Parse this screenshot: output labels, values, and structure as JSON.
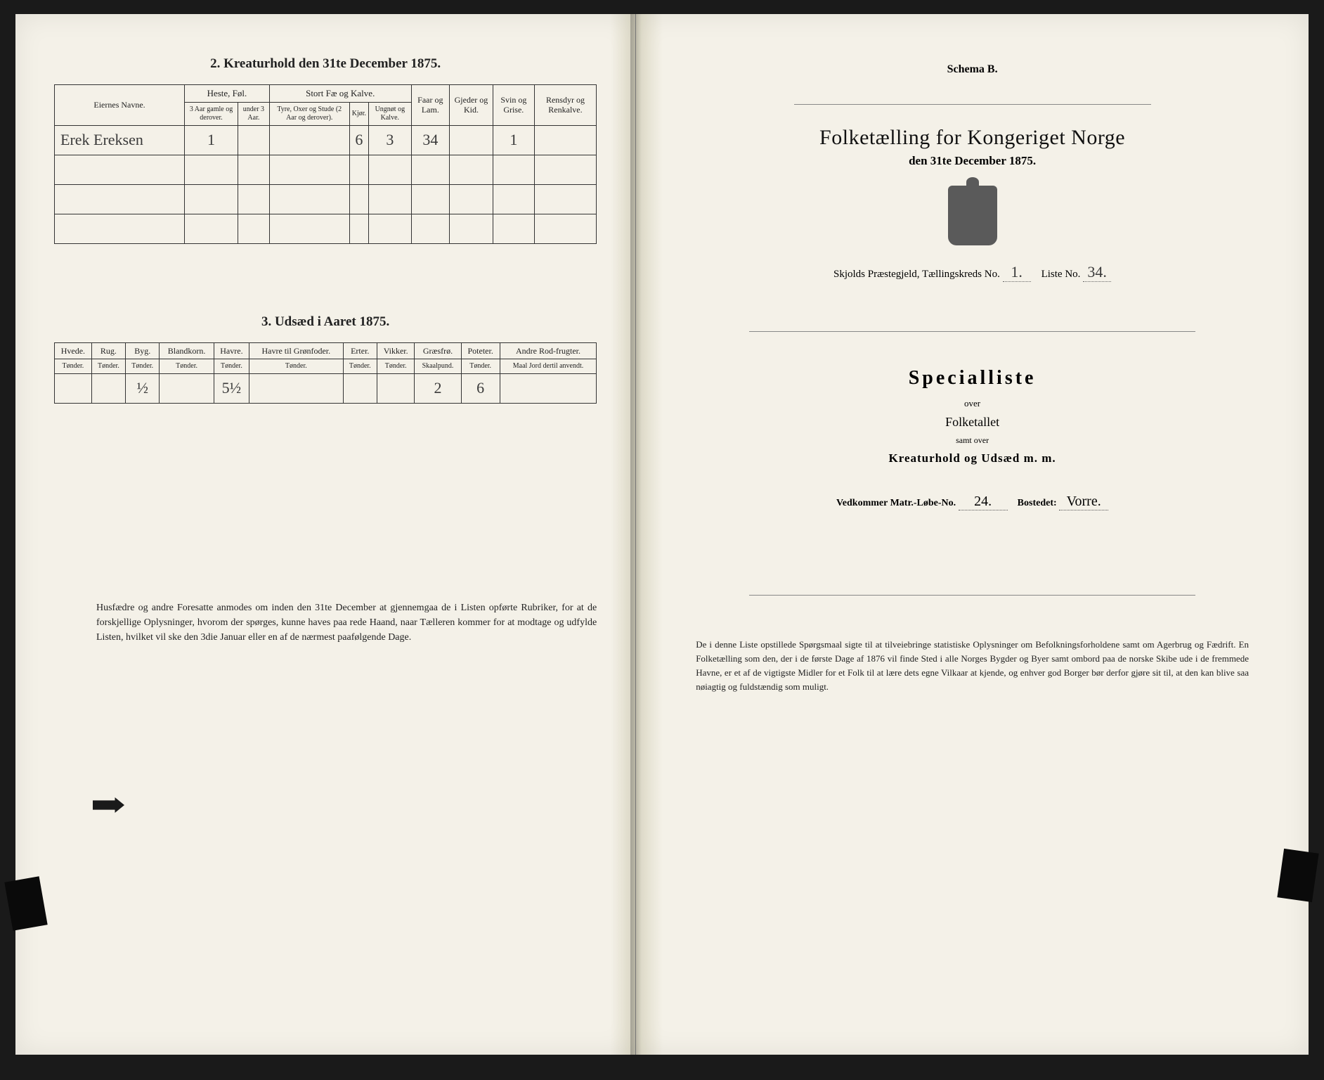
{
  "left": {
    "section2_title": "2. Kreaturhold den 31te December 1875.",
    "table2": {
      "headers": {
        "owner": "Eiernes Navne.",
        "horses": "Heste, Føl.",
        "horses_sub1": "3 Aar gamle og derover.",
        "horses_sub2": "under 3 Aar.",
        "cattle": "Stort Fæ og Kalve.",
        "cattle_sub1": "Tyre, Oxer og Stude (2 Aar og derover).",
        "cattle_sub2": "Kjør.",
        "cattle_sub3": "Ungnøt og Kalve.",
        "sheep": "Faar og Lam.",
        "goats": "Gjeder og Kid.",
        "pigs": "Svin og Grise.",
        "reindeer": "Rensdyr og Renkalve."
      },
      "rows": [
        {
          "owner": "Erek Ereksen",
          "h1": "1",
          "h2": "",
          "c1": "",
          "c2": "6",
          "c3": "3",
          "sheep": "34",
          "goats": "",
          "pigs": "1",
          "reindeer": ""
        },
        {
          "owner": "",
          "h1": "",
          "h2": "",
          "c1": "",
          "c2": "",
          "c3": "",
          "sheep": "",
          "goats": "",
          "pigs": "",
          "reindeer": ""
        },
        {
          "owner": "",
          "h1": "",
          "h2": "",
          "c1": "",
          "c2": "",
          "c3": "",
          "sheep": "",
          "goats": "",
          "pigs": "",
          "reindeer": ""
        },
        {
          "owner": "",
          "h1": "",
          "h2": "",
          "c1": "",
          "c2": "",
          "c3": "",
          "sheep": "",
          "goats": "",
          "pigs": "",
          "reindeer": ""
        }
      ]
    },
    "section3_title": "3. Udsæd i Aaret 1875.",
    "table3": {
      "headers": {
        "wheat": "Hvede.",
        "rye": "Rug.",
        "barley": "Byg.",
        "mixed": "Blandkorn.",
        "oats": "Havre.",
        "oats_green": "Havre til Grønfoder.",
        "peas": "Erter.",
        "vetches": "Vikker.",
        "grass": "Græsfrø.",
        "potatoes": "Poteter.",
        "other": "Andre Rod-frugter."
      },
      "units": {
        "tonder": "Tønder.",
        "skaalpund": "Skaalpund.",
        "maal": "Maal Jord dertil anvendt."
      },
      "row": {
        "wheat": "",
        "rye": "",
        "barley": "½",
        "mixed": "",
        "oats": "5½",
        "oats_green": "",
        "peas": "",
        "vetches": "",
        "grass": "2",
        "potatoes": "6",
        "other": ""
      }
    },
    "notice": "Husfædre og andre Foresatte anmodes om inden den 31te December at gjennemgaa de i Listen opførte Rubriker, for at de forskjellige Oplysninger, hvorom der spørges, kunne haves paa rede Haand, naar Tælleren kommer for at modtage og udfylde Listen, hvilket vil ske den 3die Januar eller en af de nærmest paafølgende Dage."
  },
  "right": {
    "schema": "Schema B.",
    "main_title": "Folketælling for Kongeriget Norge",
    "date_line": "den 31te December 1875.",
    "district_prefix": "Skjolds Præstegjeld, Tællingskreds No.",
    "district_kreds": "1.",
    "district_liste_label": "Liste No.",
    "district_liste": "34.",
    "special": "Specialliste",
    "over": "over",
    "folketallet": "Folketallet",
    "samt": "samt over",
    "kreatur": "Kreaturhold og Udsæd m. m.",
    "vedkom_label1": "Vedkommer Matr.-Løbe-No.",
    "vedkom_val1": "24.",
    "vedkom_label2": "Bostedet:",
    "vedkom_val2": "Vorre.",
    "bottom": "De i denne Liste opstillede Spørgsmaal sigte til at tilveiebringe statistiske Oplysninger om Befolkningsforholdene samt om Agerbrug og Fædrift. En Folketælling som den, der i de første Dage af 1876 vil finde Sted i alle Norges Bygder og Byer samt ombord paa de norske Skibe ude i de fremmede Havne, er et af de vigtigste Midler for et Folk til at lære dets egne Vilkaar at kjende, og enhver god Borger bør derfor gjøre sit til, at den kan blive saa nøiagtig og fuldstændig som muligt."
  },
  "colors": {
    "paper": "#f4f1e8",
    "ink": "#222222",
    "border": "#333333",
    "background": "#1a1a1a"
  }
}
